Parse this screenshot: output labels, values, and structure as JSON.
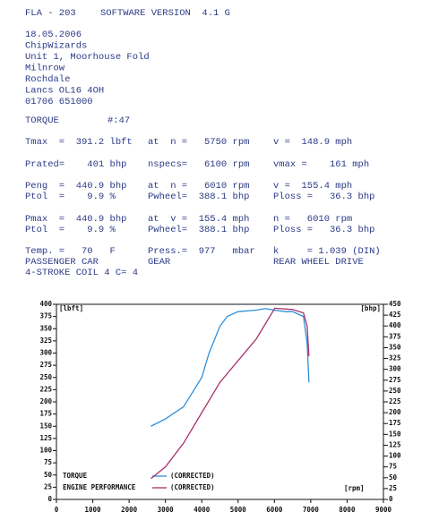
{
  "header": [
    "FLA - 203",
    "SOFTWARE VERSION  4.1 G"
  ],
  "address": [
    "18.05.2006",
    "ChipWizards",
    "Unit 1, Moorhouse Fold",
    "Milnrow",
    "Rochdale",
    "Lancs OL16 4OH",
    "01706 651000"
  ],
  "section": [
    "TORQUE",
    "#:47"
  ],
  "rows": [
    [
      "Tmax  =  391.2 lbft",
      "at  n =   5750 rpm",
      "v =  148.9 mph"
    ],
    [
      "Prated=    401 bhp",
      "nspecs=   6100 rpm",
      "vmax =    161 mph"
    ],
    [
      "Peng  =  440.9 bhp",
      "at  n =   6010 rpm",
      "v =  155.4 mph"
    ],
    [
      "Ptol  =    9.9 %",
      "Pwheel=  388.1 bhp",
      "Ploss =   36.3 bhp"
    ],
    [
      "Pmax  =  440.9 bhp",
      "at  v =  155.4 mph",
      "n =   6010 rpm"
    ],
    [
      "Ptol  =    9.9 %",
      "Pwheel=  388.1 bhp",
      "Ploss =   36.3 bhp"
    ],
    [
      "Temp. =   70   F",
      "Press.=  977   mbar",
      "k     = 1.039 (DIN)"
    ],
    [
      "PASSENGER CAR",
      "GEAR",
      "REAR WHEEL DRIVE"
    ],
    [
      "4-STROKE COIL 4 C= 4"
    ]
  ],
  "chart_data": {
    "type": "line",
    "x_label": "[rpm]",
    "y_label": "[lbft]",
    "y2_label": "[bhp]",
    "xlim": [
      0,
      9000
    ],
    "xticks": [
      0,
      1000,
      2000,
      3000,
      4000,
      5000,
      6000,
      7000,
      8000,
      9000
    ],
    "ylim": [
      0,
      400
    ],
    "yticks": [
      0,
      25,
      50,
      75,
      100,
      125,
      150,
      175,
      200,
      225,
      250,
      275,
      300,
      325,
      350,
      375,
      400
    ],
    "y2lim": [
      0,
      450
    ],
    "y2ticks": [
      0,
      25,
      50,
      75,
      100,
      125,
      150,
      175,
      200,
      225,
      250,
      275,
      300,
      325,
      350,
      375,
      400,
      425,
      450
    ],
    "series": [
      {
        "name": "TORQUE",
        "note": "(CORRECTED)",
        "color": "#2f8fd8",
        "x": [
          2600,
          3000,
          3500,
          4000,
          4200,
          4500,
          4700,
          5000,
          5500,
          5750,
          6000,
          6300,
          6500,
          6800,
          6900,
          6950
        ],
        "values": [
          150,
          165,
          190,
          250,
          300,
          355,
          375,
          385,
          388,
          391.2,
          388,
          385,
          385,
          375,
          320,
          240
        ]
      },
      {
        "name": "ENGINE PERFORMANCE",
        "note": "(CORRECTED)",
        "color": "#a8306e",
        "axis": "y2",
        "x": [
          2600,
          3000,
          3500,
          4000,
          4500,
          5000,
          5500,
          6010,
          6500,
          6800,
          6900,
          6950
        ],
        "values": [
          48,
          75,
          130,
          200,
          270,
          320,
          370,
          440.9,
          438,
          430,
          400,
          330
        ]
      }
    ]
  }
}
